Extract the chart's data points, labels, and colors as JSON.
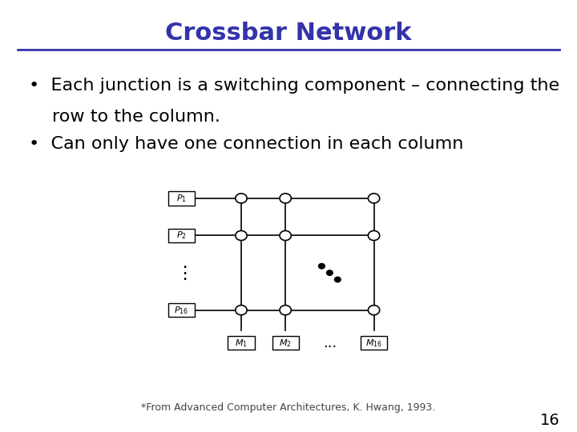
{
  "title": "Crossbar Network",
  "title_color": "#3333aa",
  "title_fontsize": 22,
  "title_bold": true,
  "bg_color": "#ffffff",
  "separator_color": "#3333aa",
  "bullet1_line1": "Each junction is a switching component – connecting the",
  "bullet1_line2": "row to the column.",
  "bullet2": "Can only have one connection in each column",
  "bullet_fontsize": 16,
  "bullet_color": "#000000",
  "footnote": "*From Advanced Computer Architectures, K. Hwang, 1993.",
  "footnote_fontsize": 9,
  "page_number": "16",
  "page_fontsize": 14,
  "row_labels": [
    "$P_1$",
    "$P_2$",
    "$P_{16}$"
  ],
  "col_labels": [
    "$M_1$",
    "$M_2$",
    "$M_{16}$"
  ],
  "line_color": "#000000",
  "node_color": "#ffffff",
  "node_edge_color": "#000000"
}
